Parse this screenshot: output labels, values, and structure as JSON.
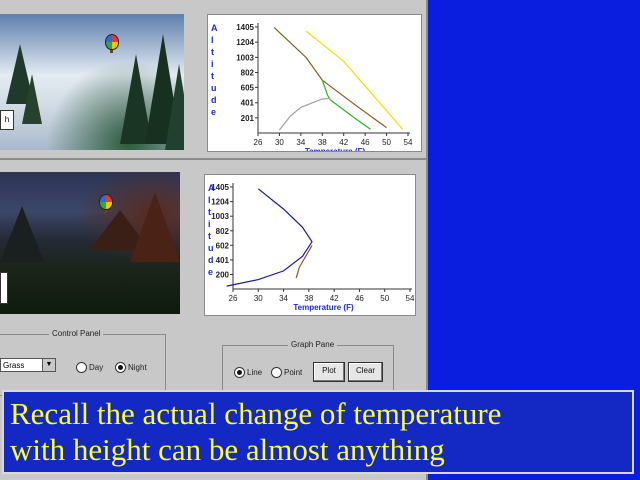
{
  "top_panel": {
    "scene_label": "h",
    "chart": {
      "x_label": "Temperature (F)",
      "y_label_letters": [
        "A",
        "l",
        "t",
        "i",
        "t",
        "u",
        "d",
        "e"
      ],
      "y_ticks": [
        "1405",
        "1204",
        "1003",
        "802",
        "605",
        "401",
        "201"
      ],
      "x_ticks": [
        "26",
        "30",
        "34",
        "38",
        "42",
        "46",
        "50",
        "54"
      ]
    }
  },
  "bottom_panel": {
    "chart": {
      "x_label": "Temperature (F)",
      "y_label_letters": [
        "A",
        "l",
        "t",
        "i",
        "t",
        "u",
        "d",
        "e"
      ],
      "y_ticks": [
        "1405",
        "1204",
        "1003",
        "802",
        "602",
        "401",
        "200"
      ],
      "x_ticks": [
        "26",
        "30",
        "34",
        "38",
        "42",
        "46",
        "50",
        "54"
      ]
    }
  },
  "control_panel": {
    "title": "Control Panel",
    "surface_select": "Grass",
    "option_day": "Day",
    "option_night": "Night",
    "selected": "Night"
  },
  "graph_pane": {
    "title": "Graph Pane",
    "option_line": "Line",
    "option_point": "Point",
    "selected": "Line",
    "plot_button": "Plot",
    "clear_button": "Clear"
  },
  "caption": {
    "line1": "Recall the actual change of temperature",
    "line2": "with height can be almost anything"
  },
  "colors": {
    "background": "#0a1ee0",
    "caption_text": "#ffff33",
    "chart_axis_labels": "#1a2ad0",
    "line_yellow": "#f0e000",
    "line_brown": "#8a5a1a",
    "line_green": "#28b428",
    "line_gray": "#a0a0a0",
    "line_blue": "#1a1aa0"
  },
  "chart_data": [
    {
      "type": "line",
      "xlabel": "Temperature (F)",
      "ylabel": "Altitude",
      "xlim": [
        26,
        54
      ],
      "ylim": [
        0,
        1405
      ],
      "y_ticks": [
        201,
        401,
        605,
        802,
        1003,
        1204,
        1405
      ],
      "series": [
        {
          "color": "#f0e000",
          "points": [
            [
              35,
              1350
            ],
            [
              42,
              950
            ],
            [
              53,
              50
            ]
          ]
        },
        {
          "color": "#8a5a1a",
          "points": [
            [
              29,
              1400
            ],
            [
              35,
              1000
            ],
            [
              38,
              700
            ],
            [
              44,
              380
            ],
            [
              50,
              70
            ]
          ]
        },
        {
          "color": "#28b428",
          "points": [
            [
              38,
              700
            ],
            [
              39,
              500
            ],
            [
              39.5,
              440
            ],
            [
              44,
              200
            ],
            [
              47,
              50
            ]
          ]
        },
        {
          "color": "#a0a0a0",
          "points": [
            [
              30,
              40
            ],
            [
              32,
              220
            ],
            [
              34,
              340
            ],
            [
              38,
              450
            ],
            [
              39.5,
              460
            ]
          ]
        }
      ]
    },
    {
      "type": "line",
      "xlabel": "Temperature (F)",
      "ylabel": "Altitude",
      "xlim": [
        26,
        54
      ],
      "ylim": [
        0,
        1405
      ],
      "y_ticks": [
        200,
        401,
        602,
        802,
        1003,
        1204,
        1405
      ],
      "series": [
        {
          "color": "#1a1aa0",
          "points": [
            [
              30,
              1380
            ],
            [
              34,
              1100
            ],
            [
              37,
              850
            ],
            [
              38.5,
              650
            ],
            [
              37,
              450
            ],
            [
              34,
              250
            ],
            [
              30,
              130
            ],
            [
              25,
              40
            ]
          ]
        },
        {
          "color": "#8a5a1a",
          "points": [
            [
              38.5,
              600
            ],
            [
              37.5,
              450
            ],
            [
              36.5,
              300
            ],
            [
              36,
              150
            ]
          ]
        }
      ]
    }
  ]
}
